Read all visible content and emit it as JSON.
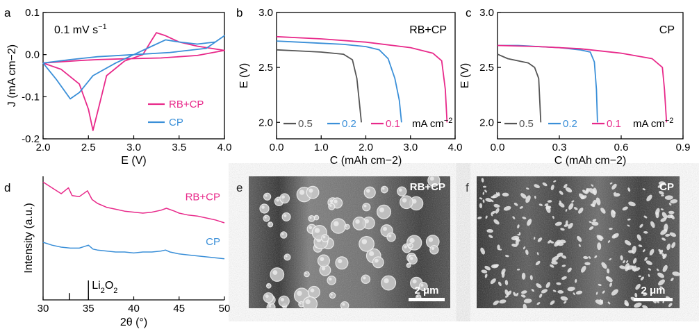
{
  "colors": {
    "pink": "#e8298a",
    "blue": "#3a8fd8",
    "gray": "#555555"
  },
  "panel_labels": [
    "a",
    "b",
    "c",
    "d",
    "e",
    "f"
  ],
  "chart_data": [
    {
      "id": "a",
      "type": "line",
      "xlabel": "E (V)",
      "ylabel": "J (mA cm−2)",
      "xlim": [
        2.0,
        4.0
      ],
      "ylim": [
        -0.2,
        0.1
      ],
      "xticks": [
        "2.0",
        "2.5",
        "3.0",
        "3.5",
        "4.0"
      ],
      "yticks": [
        "0.1",
        "0.0",
        "-0.1",
        "-0.2"
      ],
      "annotation": "0.1 mV s−1",
      "legend_position": "lower-right",
      "series": [
        {
          "name": "RB+CP",
          "color": "pink",
          "x": [
            2.0,
            2.2,
            2.4,
            2.5,
            2.55,
            2.62,
            2.7,
            2.9,
            3.1,
            3.2,
            3.25,
            3.35,
            3.5,
            3.7,
            4.0,
            3.7,
            3.3,
            2.9,
            2.6,
            2.4,
            2.2,
            2.0
          ],
          "y": [
            -0.02,
            -0.035,
            -0.07,
            -0.13,
            -0.18,
            -0.12,
            -0.05,
            -0.015,
            0.0,
            0.035,
            0.052,
            0.045,
            0.03,
            0.02,
            0.01,
            -0.002,
            -0.008,
            -0.01,
            -0.012,
            -0.014,
            -0.017,
            -0.02
          ]
        },
        {
          "name": "CP",
          "color": "blue",
          "x": [
            2.0,
            2.15,
            2.3,
            2.4,
            2.55,
            2.8,
            3.0,
            3.2,
            3.35,
            3.5,
            3.7,
            3.9,
            4.0,
            3.8,
            3.4,
            3.0,
            2.6,
            2.3,
            2.0
          ],
          "y": [
            -0.02,
            -0.06,
            -0.105,
            -0.09,
            -0.05,
            -0.02,
            0.0,
            0.02,
            0.035,
            0.03,
            0.025,
            0.03,
            0.045,
            0.015,
            0.005,
            0.0,
            -0.005,
            -0.012,
            -0.02
          ]
        }
      ]
    },
    {
      "id": "b",
      "type": "line",
      "xlabel": "C (mAh cm−2)",
      "ylabel": "E (V)",
      "xlim": [
        0.0,
        4.0
      ],
      "ylim": [
        1.85,
        3.0
      ],
      "xticks": [
        "0.0",
        "1.0",
        "2.0",
        "3.0",
        "4.0"
      ],
      "yticks": [
        "3.0",
        "2.5",
        "2.0"
      ],
      "annotation": "RB+CP",
      "legend_unit": "mA cm−2",
      "legend_position": "bottom",
      "series": [
        {
          "name": "0.5",
          "color": "gray",
          "x": [
            0.0,
            0.5,
            1.0,
            1.5,
            1.7,
            1.8,
            1.85,
            1.9
          ],
          "y": [
            2.66,
            2.65,
            2.64,
            2.62,
            2.57,
            2.4,
            2.2,
            2.0
          ]
        },
        {
          "name": "0.2",
          "color": "blue",
          "x": [
            0.0,
            0.5,
            1.0,
            1.5,
            2.0,
            2.3,
            2.5,
            2.65,
            2.75,
            2.8
          ],
          "y": [
            2.74,
            2.73,
            2.72,
            2.71,
            2.69,
            2.66,
            2.58,
            2.4,
            2.2,
            2.0
          ]
        },
        {
          "name": "0.1",
          "color": "pink",
          "x": [
            0.0,
            1.0,
            2.0,
            3.0,
            3.5,
            3.7,
            3.78,
            3.82
          ],
          "y": [
            2.78,
            2.76,
            2.73,
            2.68,
            2.63,
            2.56,
            2.3,
            2.0
          ]
        }
      ]
    },
    {
      "id": "c",
      "type": "line",
      "xlabel": "C (mAh cm−2)",
      "ylabel": "E (V)",
      "xlim": [
        0.0,
        0.9
      ],
      "ylim": [
        1.85,
        3.0
      ],
      "xticks": [
        "0.0",
        "0.3",
        "0.6",
        "0.9"
      ],
      "yticks": [
        "3.0",
        "2.5",
        "2.0"
      ],
      "annotation": "CP",
      "legend_unit": "mA cm−2",
      "legend_position": "bottom",
      "series": [
        {
          "name": "0.5",
          "color": "gray",
          "x": [
            0.0,
            0.05,
            0.1,
            0.15,
            0.18,
            0.2,
            0.205,
            0.21
          ],
          "y": [
            2.62,
            2.58,
            2.56,
            2.54,
            2.5,
            2.4,
            2.2,
            2.0
          ]
        },
        {
          "name": "0.2",
          "color": "blue",
          "x": [
            0.0,
            0.1,
            0.2,
            0.3,
            0.4,
            0.45,
            0.47,
            0.48,
            0.485
          ],
          "y": [
            2.7,
            2.7,
            2.69,
            2.68,
            2.66,
            2.64,
            2.55,
            2.3,
            2.0
          ]
        },
        {
          "name": "0.1",
          "color": "pink",
          "x": [
            0.0,
            0.2,
            0.4,
            0.6,
            0.75,
            0.8,
            0.81,
            0.82
          ],
          "y": [
            2.7,
            2.69,
            2.67,
            2.63,
            2.58,
            2.5,
            2.3,
            2.0
          ]
        }
      ]
    },
    {
      "id": "d",
      "type": "line",
      "xlabel": "2θ (°)",
      "ylabel": "Intensity (a.u.)",
      "xlim": [
        30,
        50
      ],
      "xticks": [
        "30",
        "35",
        "40",
        "45",
        "50"
      ],
      "reference_label": "Li2O2",
      "reference_peaks": [
        {
          "x": 32.9,
          "h": 0.35
        },
        {
          "x": 35.0,
          "h": 1.0
        }
      ],
      "series": [
        {
          "name": "RB+CP",
          "color": "pink",
          "x": [
            30,
            31,
            32,
            32.8,
            33.2,
            34,
            34.9,
            35.4,
            36,
            37,
            38,
            39,
            40,
            41,
            42,
            43,
            43.6,
            44.5,
            45,
            46,
            47,
            48,
            49,
            50
          ],
          "y": [
            0.62,
            0.56,
            0.5,
            0.56,
            0.48,
            0.47,
            0.53,
            0.44,
            0.4,
            0.36,
            0.34,
            0.32,
            0.31,
            0.3,
            0.31,
            0.33,
            0.35,
            0.32,
            0.3,
            0.28,
            0.27,
            0.25,
            0.23,
            0.2
          ]
        },
        {
          "name": "CP",
          "color": "blue",
          "x": [
            30,
            31,
            32,
            33,
            34,
            35,
            35.5,
            36,
            37,
            38,
            39,
            40,
            41,
            42,
            43,
            43.5,
            44,
            45,
            46,
            47,
            48,
            49,
            50
          ],
          "y": [
            0.0,
            -0.03,
            -0.05,
            -0.06,
            -0.06,
            -0.03,
            -0.07,
            -0.08,
            -0.09,
            -0.1,
            -0.1,
            -0.11,
            -0.1,
            -0.1,
            -0.09,
            -0.08,
            -0.1,
            -0.12,
            -0.13,
            -0.14,
            -0.15,
            -0.16,
            -0.17
          ]
        }
      ]
    }
  ],
  "sem_images": [
    {
      "id": "e",
      "label": "RB+CP",
      "scale_bar": "2 μm"
    },
    {
      "id": "f",
      "label": "CP",
      "scale_bar": "2 μm"
    }
  ]
}
